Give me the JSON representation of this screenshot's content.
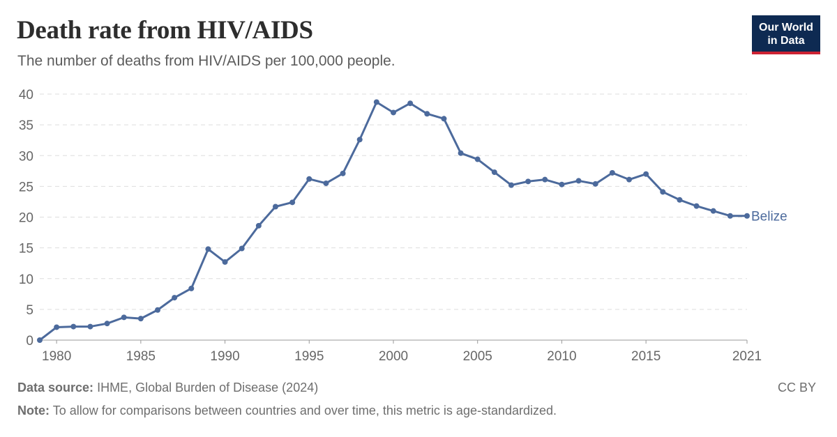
{
  "header": {
    "title": "Death rate from HIV/AIDS",
    "subtitle": "The number of deaths from HIV/AIDS per 100,000 people."
  },
  "logo": {
    "line1": "Our World",
    "line2": "in Data"
  },
  "footer": {
    "source_label": "Data source:",
    "source_text": "IHME, Global Burden of Disease (2024)",
    "note_label": "Note:",
    "note_text": "To allow for comparisons between countries and over time, this metric is age-standardized.",
    "license": "CC BY"
  },
  "colors": {
    "series": "#4c6a9c",
    "grid": "#dddddd",
    "logo_bg": "#0e2a52",
    "logo_accent": "#cc2233"
  },
  "chart_data": {
    "type": "line",
    "title": "Death rate from HIV/AIDS",
    "subtitle": "The number of deaths from HIV/AIDS per 100,000 people.",
    "xlabel": "",
    "ylabel": "",
    "xlim": [
      1979,
      2021
    ],
    "ylim": [
      0,
      40
    ],
    "y_ticks": [
      0,
      5,
      10,
      15,
      20,
      25,
      30,
      35,
      40
    ],
    "x_ticks": [
      "1980",
      "1985",
      "1990",
      "1995",
      "2000",
      "2005",
      "2010",
      "2015",
      "2021"
    ],
    "x_tick_values": [
      1980,
      1985,
      1990,
      1995,
      2000,
      2005,
      2010,
      2015,
      2021
    ],
    "grid": "horizontal dashed",
    "series": [
      {
        "name": "Belize",
        "x": [
          1979,
          1980,
          1981,
          1982,
          1983,
          1984,
          1985,
          1986,
          1987,
          1988,
          1989,
          1990,
          1991,
          1992,
          1993,
          1994,
          1995,
          1996,
          1997,
          1998,
          1999,
          2000,
          2001,
          2002,
          2003,
          2004,
          2005,
          2006,
          2007,
          2008,
          2009,
          2010,
          2011,
          2012,
          2013,
          2014,
          2015,
          2016,
          2017,
          2018,
          2019,
          2020,
          2021
        ],
        "values": [
          0.0,
          2.1,
          2.2,
          2.2,
          2.7,
          3.7,
          3.5,
          4.9,
          6.9,
          8.4,
          14.8,
          12.7,
          14.9,
          18.6,
          21.7,
          22.4,
          26.2,
          25.5,
          27.1,
          32.6,
          38.7,
          37.0,
          38.5,
          36.8,
          36.0,
          30.4,
          29.4,
          27.3,
          25.2,
          25.8,
          26.1,
          25.3,
          25.9,
          25.4,
          27.2,
          26.1,
          27.0,
          24.1,
          22.8,
          21.8,
          21.0,
          20.2,
          20.2
        ]
      }
    ]
  }
}
